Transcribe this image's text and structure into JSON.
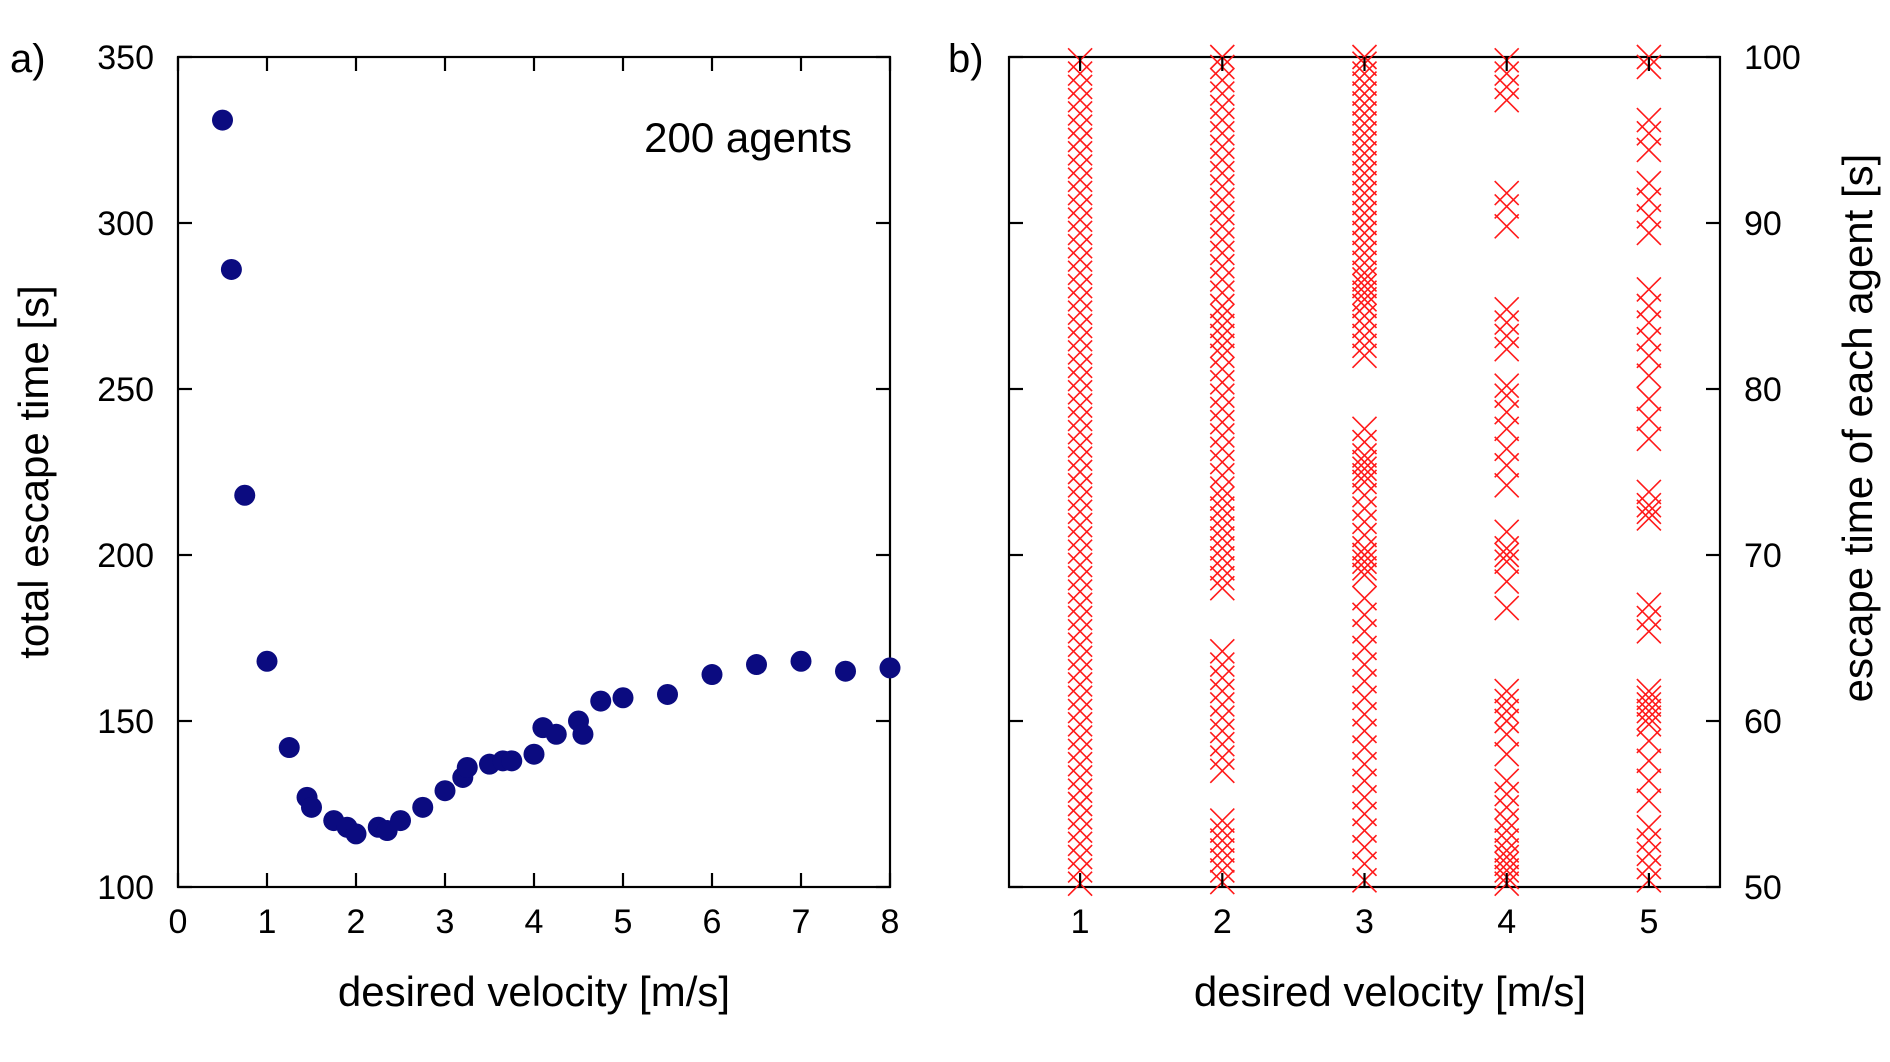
{
  "chart_data": [
    {
      "type": "scatter",
      "panel_label": "a)",
      "title": "",
      "xlabel": "desired velocity [m/s]",
      "ylabel": "total escape time [s]",
      "xlim": [
        0,
        8
      ],
      "ylim": [
        100,
        350
      ],
      "xticks": [
        0,
        1,
        2,
        3,
        4,
        5,
        6,
        7,
        8
      ],
      "yticks": [
        100,
        150,
        200,
        250,
        300,
        350
      ],
      "xtick_labels": [
        "0",
        "1",
        "2",
        "3",
        "4",
        "5",
        "6",
        "7",
        "8"
      ],
      "ytick_labels": [
        "100",
        "150",
        "200",
        "250",
        "300",
        "350"
      ],
      "annotation": "200 agents",
      "marker_color": "#0b0b80",
      "points": [
        [
          0.5,
          331
        ],
        [
          0.6,
          286
        ],
        [
          0.75,
          218
        ],
        [
          1.0,
          168
        ],
        [
          1.25,
          142
        ],
        [
          1.45,
          127
        ],
        [
          1.5,
          124
        ],
        [
          1.75,
          120
        ],
        [
          1.9,
          118
        ],
        [
          2.0,
          116
        ],
        [
          2.25,
          118
        ],
        [
          2.35,
          117
        ],
        [
          2.5,
          120
        ],
        [
          2.75,
          124
        ],
        [
          3.0,
          129
        ],
        [
          3.2,
          133
        ],
        [
          3.25,
          136
        ],
        [
          3.5,
          137
        ],
        [
          3.65,
          138
        ],
        [
          3.75,
          138
        ],
        [
          4.0,
          140
        ],
        [
          4.1,
          148
        ],
        [
          4.25,
          146
        ],
        [
          4.5,
          150
        ],
        [
          4.55,
          146
        ],
        [
          4.75,
          156
        ],
        [
          5.0,
          157
        ],
        [
          5.5,
          158
        ],
        [
          6.0,
          164
        ],
        [
          6.5,
          167
        ],
        [
          7.0,
          168
        ],
        [
          7.5,
          165
        ],
        [
          8.0,
          166
        ]
      ]
    },
    {
      "type": "scatter",
      "panel_label": "b)",
      "title": "",
      "xlabel": "desired velocity [m/s]",
      "ylabel": "escape time of each agent [s]",
      "xlim": [
        0.5,
        5.5
      ],
      "ylim": [
        50,
        100
      ],
      "xticks": [
        1,
        2,
        3,
        4,
        5
      ],
      "yticks": [
        50,
        60,
        70,
        80,
        90,
        100
      ],
      "xtick_labels": [
        "1",
        "2",
        "3",
        "4",
        "5"
      ],
      "ytick_labels": [
        "50",
        "60",
        "70",
        "80",
        "90",
        "100"
      ],
      "marker_color": "#ff1a1a",
      "series": [
        {
          "x": 1,
          "y": [
            50.2,
            51.0,
            51.8,
            52.6,
            53.4,
            54.2,
            55.0,
            55.8,
            56.6,
            57.4,
            58.2,
            59.0,
            59.8,
            60.6,
            61.4,
            62.2,
            63.0,
            63.8,
            64.6,
            65.4,
            66.2,
            67.0,
            67.8,
            68.6,
            69.4,
            70.2,
            71.0,
            71.8,
            72.6,
            73.4,
            74.2,
            75.0,
            75.8,
            76.6,
            77.4,
            78.2,
            79.0,
            79.8,
            80.6,
            81.4,
            82.2,
            83.0,
            83.8,
            84.6,
            85.4,
            86.2,
            87.0,
            87.8,
            88.6,
            89.4,
            90.2,
            91.0,
            91.8,
            92.6,
            93.4,
            94.2,
            95.0,
            95.8,
            96.6,
            97.4,
            98.2,
            99.0,
            99.8
          ]
        },
        {
          "x": 2,
          "y": [
            50.3,
            51.0,
            51.6,
            52.2,
            52.8,
            53.4,
            54.0,
            57.0,
            57.8,
            58.6,
            59.4,
            60.2,
            61.0,
            61.8,
            62.6,
            63.4,
            64.2,
            68.0,
            68.6,
            69.2,
            69.8,
            70.4,
            71.0,
            71.6,
            72.2,
            72.8,
            73.4,
            74.0,
            74.8,
            75.6,
            76.4,
            77.2,
            78.0,
            78.8,
            79.6,
            80.4,
            81.2,
            82.0,
            82.6,
            83.2,
            83.8,
            84.4,
            85.0,
            85.8,
            86.6,
            87.4,
            88.2,
            89.0,
            89.8,
            90.6,
            91.4,
            92.2,
            93.0,
            93.8,
            94.6,
            95.4,
            96.2,
            97.0,
            97.8,
            98.6,
            99.4,
            100.0
          ]
        },
        {
          "x": 3,
          "y": [
            50.4,
            51.4,
            52.4,
            53.4,
            54.4,
            55.4,
            56.4,
            57.4,
            58.4,
            59.4,
            60.4,
            61.4,
            62.4,
            63.4,
            64.4,
            65.4,
            66.4,
            67.4,
            68.8,
            69.2,
            69.6,
            70.0,
            70.4,
            71.2,
            72.0,
            72.8,
            73.6,
            74.4,
            74.8,
            75.2,
            75.6,
            76.0,
            76.8,
            77.6,
            82.0,
            82.6,
            83.2,
            83.8,
            84.4,
            85.0,
            85.4,
            85.8,
            86.2,
            86.6,
            87.0,
            87.6,
            88.2,
            88.8,
            89.4,
            90.0,
            90.6,
            91.2,
            91.8,
            92.4,
            93.0,
            93.6,
            94.2,
            94.8,
            95.4,
            96.0,
            96.6,
            97.2,
            97.8,
            98.4,
            99.0,
            99.6,
            100.0
          ]
        },
        {
          "x": 4,
          "y": [
            50.2,
            50.6,
            51.0,
            51.4,
            51.8,
            52.2,
            52.8,
            53.4,
            54.0,
            54.8,
            55.6,
            56.4,
            58.0,
            59.2,
            60.0,
            60.6,
            61.2,
            61.8,
            66.8,
            68.4,
            69.6,
            70.0,
            70.4,
            71.4,
            74.2,
            75.4,
            76.4,
            77.6,
            78.6,
            79.6,
            80.2,
            82.4,
            83.2,
            84.0,
            84.8,
            89.8,
            91.0,
            91.8,
            97.4,
            98.2,
            99.0,
            99.8
          ]
        },
        {
          "x": 5,
          "y": [
            50.4,
            51.2,
            52.0,
            52.8,
            53.6,
            55.2,
            56.4,
            57.6,
            58.8,
            59.8,
            60.2,
            60.6,
            61.0,
            61.4,
            61.8,
            65.4,
            66.2,
            67.0,
            72.2,
            72.6,
            73.0,
            73.8,
            77.0,
            78.2,
            79.4,
            80.8,
            82.0,
            83.0,
            84.0,
            85.0,
            86.0,
            89.4,
            90.4,
            91.4,
            92.4,
            94.4,
            95.4,
            96.2,
            99.4,
            100.0
          ]
        }
      ]
    }
  ]
}
